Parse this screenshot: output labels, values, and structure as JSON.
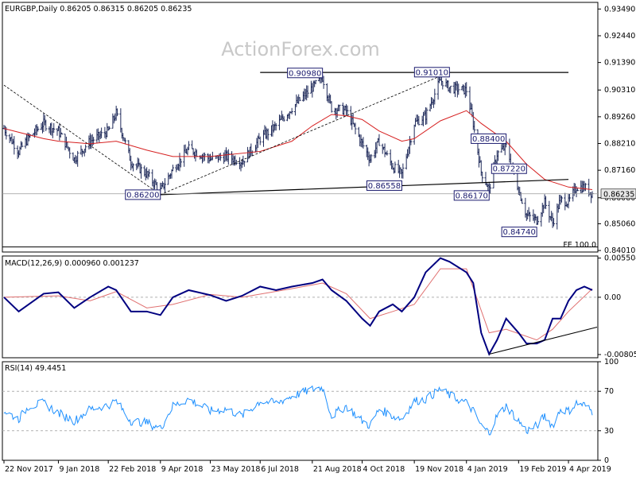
{
  "header": {
    "main": "EURGBP,Daily  0.86205 0.86315 0.86205 0.86235",
    "macd": "MACD(12,26,9) 0.000960 0.001237",
    "rsi": "RSI(14) 49.4451",
    "watermark": "ActionForex.com",
    "fe_label": "FE 100.0"
  },
  "colors": {
    "bars": "#1f2a5a",
    "ma": "#d62020",
    "macd_line": "#000080",
    "signal": "#e07070",
    "rsi": "#1e90ff",
    "box_border": "#1a1a6e",
    "box_fill": "#ffffff",
    "current_box": "#e8e8e8"
  },
  "chart_data": [
    {
      "type": "ohlc",
      "symbol": "EURGBP",
      "timeframe": "Daily",
      "ohlc_last": {
        "open": 0.86205,
        "high": 0.86315,
        "low": 0.86205,
        "close": 0.86235
      },
      "current_price": "0.86235",
      "y_ticks": [
        "0.93490",
        "0.92440",
        "0.91390",
        "0.90310",
        "0.89260",
        "0.88210",
        "0.87160",
        "0.86080",
        "0.85060",
        "0.84010"
      ],
      "ylim": [
        0.8395,
        0.9375
      ],
      "x_ticks": [
        "22 Nov 2017",
        "9 Jan 2018",
        "22 Feb 2018",
        "9 Apr 2018",
        "23 May 2018",
        "6 Jul 2018",
        "21 Aug 2018",
        "4 Oct 2018",
        "19 Nov 2018",
        "4 Jan 2019",
        "19 Feb 2019",
        "4 Apr 2019"
      ],
      "close_path": [
        [
          "22 Nov 2017",
          0.888
        ],
        [
          "5 Dec 2017",
          0.879
        ],
        [
          "14 Dec 2017",
          0.8845
        ],
        [
          "27 Dec 2017",
          0.89
        ],
        [
          "9 Jan 2018",
          0.887
        ],
        [
          "23 Jan 2018",
          0.876
        ],
        [
          "6 Feb 2018",
          0.883
        ],
        [
          "22 Feb 2018",
          0.887
        ],
        [
          "1 Mar 2018",
          0.894
        ],
        [
          "14 Mar 2018",
          0.875
        ],
        [
          "28 Mar 2018",
          0.87
        ],
        [
          "9 Apr 2018",
          0.8635
        ],
        [
          "20 Apr 2018",
          0.872
        ],
        [
          "4 May 2018",
          0.88
        ],
        [
          "23 May 2018",
          0.876
        ],
        [
          "6 Jun 2018",
          0.877
        ],
        [
          "20 Jun 2018",
          0.875
        ],
        [
          "6 Jul 2018",
          0.884
        ],
        [
          "20 Jul 2018",
          0.889
        ],
        [
          "3 Aug 2018",
          0.896
        ],
        [
          "21 Aug 2018",
          0.904
        ],
        [
          "30 Aug 2018",
          0.908
        ],
        [
          "7 Sep 2018",
          0.896
        ],
        [
          "20 Sep 2018",
          0.895
        ],
        [
          "4 Oct 2018",
          0.882
        ],
        [
          "11 Oct 2018",
          0.876
        ],
        [
          "19 Oct 2018",
          0.883
        ],
        [
          "31 Oct 2018",
          0.873
        ],
        [
          "8 Nov 2018",
          0.87
        ],
        [
          "19 Nov 2018",
          0.89
        ],
        [
          "29 Nov 2018",
          0.893
        ],
        [
          "12 Dec 2018",
          0.907
        ],
        [
          "20 Dec 2018",
          0.904
        ],
        [
          "4 Jan 2019",
          0.903
        ],
        [
          "10 Jan 2019",
          0.89
        ],
        [
          "17 Jan 2019",
          0.871
        ],
        [
          "24 Jan 2019",
          0.864
        ],
        [
          "31 Jan 2019",
          0.878
        ],
        [
          "8 Feb 2019",
          0.881
        ],
        [
          "19 Feb 2019",
          0.864
        ],
        [
          "26 Feb 2019",
          0.854
        ],
        [
          "7 Mar 2019",
          0.852
        ],
        [
          "14 Mar 2019",
          0.859
        ],
        [
          "21 Mar 2019",
          0.851
        ],
        [
          "28 Mar 2019",
          0.86
        ],
        [
          "4 Apr 2019",
          0.859
        ],
        [
          "11 Apr 2019",
          0.865
        ],
        [
          "18 Apr 2019",
          0.865
        ],
        [
          "25 Apr 2019",
          0.8624
        ]
      ],
      "ma_path": [
        [
          "22 Nov 2017",
          0.888
        ],
        [
          "27 Dec 2017",
          0.884
        ],
        [
          "9 Jan 2018",
          0.883
        ],
        [
          "6 Feb 2018",
          0.882
        ],
        [
          "1 Mar 2018",
          0.883
        ],
        [
          "28 Mar 2018",
          0.8795
        ],
        [
          "20 Apr 2018",
          0.877
        ],
        [
          "23 May 2018",
          0.877
        ],
        [
          "6 Jul 2018",
          0.879
        ],
        [
          "3 Aug 2018",
          0.883
        ],
        [
          "21 Aug 2018",
          0.889
        ],
        [
          "7 Sep 2018",
          0.8935
        ],
        [
          "20 Sep 2018",
          0.893
        ],
        [
          "4 Oct 2018",
          0.8915
        ],
        [
          "19 Oct 2018",
          0.887
        ],
        [
          "8 Nov 2018",
          0.883
        ],
        [
          "19 Nov 2018",
          0.884
        ],
        [
          "12 Dec 2018",
          0.891
        ],
        [
          "4 Jan 2019",
          0.895
        ],
        [
          "17 Jan 2019",
          0.89
        ],
        [
          "8 Feb 2019",
          0.883
        ],
        [
          "26 Feb 2019",
          0.874
        ],
        [
          "14 Mar 2019",
          0.868
        ],
        [
          "4 Apr 2019",
          0.865
        ],
        [
          "25 Apr 2019",
          0.864
        ]
      ],
      "labels": [
        {
          "text": "0.86200",
          "date": "9 Apr 2018",
          "price": 0.862,
          "pos": "left"
        },
        {
          "text": "0.90980",
          "date": "30 Aug 2018",
          "price": 0.9098,
          "pos": "left"
        },
        {
          "text": "0.86558",
          "date": "8 Nov 2018",
          "price": 0.86558,
          "pos": "left"
        },
        {
          "text": "0.91010",
          "date": "20 Dec 2018",
          "price": 0.9101,
          "pos": "left"
        },
        {
          "text": "0.88400",
          "date": "8 Feb 2019",
          "price": 0.884,
          "pos": "left"
        },
        {
          "text": "0.86170",
          "date": "24 Jan 2019",
          "price": 0.8617,
          "pos": "left"
        },
        {
          "text": "0.87220",
          "date": "26 Feb 2019",
          "price": 0.8722,
          "pos": "left"
        },
        {
          "text": "0.84740",
          "date": "7 Mar 2019",
          "price": 0.8474,
          "pos": "left"
        }
      ],
      "trendlines": [
        {
          "style": "solid",
          "from": [
            "9 Apr 2018",
            0.862
          ],
          "to": [
            "4 Apr 2019",
            0.868
          ]
        },
        {
          "style": "solid",
          "from": [
            "6 Jul 2018",
            0.91
          ],
          "to": [
            "4 Apr 2019",
            0.91
          ]
        },
        {
          "style": "dashed",
          "from": [
            "22 Nov 2017",
            0.905
          ],
          "to": [
            "9 Apr 2018",
            0.862
          ]
        },
        {
          "style": "dashed",
          "from": [
            "9 Apr 2018",
            0.862
          ],
          "to": [
            "20 Dec 2018",
            0.9101
          ]
        },
        {
          "style": "horizontal",
          "price": 0.8415,
          "label": "FE 100.0"
        },
        {
          "style": "current-price",
          "price": 0.86235
        }
      ]
    },
    {
      "type": "line",
      "name": "MACD(12,26,9)",
      "y_ticks": [
        "0.005504",
        "0.00",
        "-0.00805"
      ],
      "ylim": [
        -0.0085,
        0.0058
      ],
      "series": [
        {
          "name": "MACD",
          "points": [
            [
              "22 Nov 2017",
              0.0
            ],
            [
              "5 Dec 2017",
              -0.002
            ],
            [
              "27 Dec 2017",
              0.0005
            ],
            [
              "9 Jan 2018",
              0.0007
            ],
            [
              "23 Jan 2018",
              -0.0015
            ],
            [
              "6 Feb 2018",
              0.0
            ],
            [
              "22 Feb 2018",
              0.0015
            ],
            [
              "1 Mar 2018",
              0.001
            ],
            [
              "14 Mar 2018",
              -0.002
            ],
            [
              "28 Mar 2018",
              -0.002
            ],
            [
              "9 Apr 2018",
              -0.0025
            ],
            [
              "20 Apr 2018",
              0.0
            ],
            [
              "4 May 2018",
              0.001
            ],
            [
              "23 May 2018",
              0.0003
            ],
            [
              "6 Jun 2018",
              -0.0005
            ],
            [
              "20 Jun 2018",
              0.0002
            ],
            [
              "6 Jul 2018",
              0.0015
            ],
            [
              "20 Jul 2018",
              0.001
            ],
            [
              "3 Aug 2018",
              0.0015
            ],
            [
              "21 Aug 2018",
              0.002
            ],
            [
              "30 Aug 2018",
              0.0025
            ],
            [
              "7 Sep 2018",
              0.001
            ],
            [
              "20 Sep 2018",
              -0.0005
            ],
            [
              "4 Oct 2018",
              -0.003
            ],
            [
              "11 Oct 2018",
              -0.004
            ],
            [
              "19 Oct 2018",
              -0.002
            ],
            [
              "31 Oct 2018",
              -0.001
            ],
            [
              "8 Nov 2018",
              -0.002
            ],
            [
              "19 Nov 2018",
              0.0
            ],
            [
              "29 Nov 2018",
              0.0035
            ],
            [
              "12 Dec 2018",
              0.0055
            ],
            [
              "20 Dec 2018",
              0.005
            ],
            [
              "4 Jan 2019",
              0.0035
            ],
            [
              "10 Jan 2019",
              0.002
            ],
            [
              "17 Jan 2019",
              -0.005
            ],
            [
              "24 Jan 2019",
              -0.008
            ],
            [
              "31 Jan 2019",
              -0.006
            ],
            [
              "8 Feb 2019",
              -0.003
            ],
            [
              "19 Feb 2019",
              -0.005
            ],
            [
              "26 Feb 2019",
              -0.0065
            ],
            [
              "7 Mar 2019",
              -0.0065
            ],
            [
              "14 Mar 2019",
              -0.006
            ],
            [
              "21 Mar 2019",
              -0.003
            ],
            [
              "28 Mar 2019",
              -0.003
            ],
            [
              "4 Apr 2019",
              -0.0005
            ],
            [
              "11 Apr 2019",
              0.001
            ],
            [
              "18 Apr 2019",
              0.0015
            ],
            [
              "25 Apr 2019",
              0.001
            ]
          ]
        },
        {
          "name": "Signal",
          "points": [
            [
              "22 Nov 2017",
              0.0
            ],
            [
              "9 Jan 2018",
              0.0002
            ],
            [
              "6 Feb 2018",
              -0.0005
            ],
            [
              "1 Mar 2018",
              0.0008
            ],
            [
              "28 Mar 2018",
              -0.0015
            ],
            [
              "20 Apr 2018",
              -0.001
            ],
            [
              "23 May 2018",
              0.0004
            ],
            [
              "20 Jun 2018",
              0.0
            ],
            [
              "3 Aug 2018",
              0.0012
            ],
            [
              "30 Aug 2018",
              0.002
            ],
            [
              "20 Sep 2018",
              0.0005
            ],
            [
              "11 Oct 2018",
              -0.003
            ],
            [
              "31 Oct 2018",
              -0.002
            ],
            [
              "19 Nov 2018",
              -0.001
            ],
            [
              "12 Dec 2018",
              0.004
            ],
            [
              "4 Jan 2019",
              0.004
            ],
            [
              "24 Jan 2019",
              -0.005
            ],
            [
              "8 Feb 2019",
              -0.0045
            ],
            [
              "7 Mar 2019",
              -0.006
            ],
            [
              "21 Mar 2019",
              -0.0045
            ],
            [
              "4 Apr 2019",
              -0.002
            ],
            [
              "25 Apr 2019",
              0.0012
            ]
          ]
        }
      ],
      "trendline": {
        "from": [
          "24 Jan 2019",
          -0.008
        ],
        "to": [
          "25 Apr 2019",
          -0.0042
        ]
      }
    },
    {
      "type": "line",
      "name": "RSI(14)",
      "y_ticks": [
        "100",
        "70",
        "30",
        "0"
      ],
      "ylim": [
        0,
        100
      ],
      "levels": [
        70,
        30
      ],
      "series": [
        {
          "name": "RSI",
          "points": [
            [
              "22 Nov 2017",
              50
            ],
            [
              "5 Dec 2017",
              42
            ],
            [
              "14 Dec 2017",
              55
            ],
            [
              "27 Dec 2017",
              58
            ],
            [
              "9 Jan 2018",
              48
            ],
            [
              "23 Jan 2018",
              40
            ],
            [
              "6 Feb 2018",
              52
            ],
            [
              "22 Feb 2018",
              56
            ],
            [
              "1 Mar 2018",
              60
            ],
            [
              "14 Mar 2018",
              40
            ],
            [
              "28 Mar 2018",
              38
            ],
            [
              "9 Apr 2018",
              32
            ],
            [
              "20 Apr 2018",
              55
            ],
            [
              "4 May 2018",
              62
            ],
            [
              "23 May 2018",
              50
            ],
            [
              "6 Jun 2018",
              52
            ],
            [
              "20 Jun 2018",
              45
            ],
            [
              "6 Jul 2018",
              60
            ],
            [
              "20 Jul 2018",
              58
            ],
            [
              "3 Aug 2018",
              65
            ],
            [
              "21 Aug 2018",
              72
            ],
            [
              "30 Aug 2018",
              74
            ],
            [
              "7 Sep 2018",
              45
            ],
            [
              "20 Sep 2018",
              55
            ],
            [
              "4 Oct 2018",
              40
            ],
            [
              "11 Oct 2018",
              35
            ],
            [
              "19 Oct 2018",
              52
            ],
            [
              "31 Oct 2018",
              45
            ],
            [
              "8 Nov 2018",
              42
            ],
            [
              "19 Nov 2018",
              60
            ],
            [
              "29 Nov 2018",
              62
            ],
            [
              "12 Dec 2018",
              72
            ],
            [
              "20 Dec 2018",
              66
            ],
            [
              "4 Jan 2019",
              58
            ],
            [
              "10 Jan 2019",
              50
            ],
            [
              "17 Jan 2019",
              35
            ],
            [
              "24 Jan 2019",
              28
            ],
            [
              "31 Jan 2019",
              45
            ],
            [
              "8 Feb 2019",
              55
            ],
            [
              "19 Feb 2019",
              40
            ],
            [
              "26 Feb 2019",
              30
            ],
            [
              "7 Mar 2019",
              35
            ],
            [
              "14 Mar 2019",
              45
            ],
            [
              "21 Mar 2019",
              35
            ],
            [
              "28 Mar 2019",
              52
            ],
            [
              "4 Apr 2019",
              50
            ],
            [
              "11 Apr 2019",
              58
            ],
            [
              "18 Apr 2019",
              56
            ],
            [
              "25 Apr 2019",
              49.4451
            ]
          ]
        }
      ]
    }
  ]
}
